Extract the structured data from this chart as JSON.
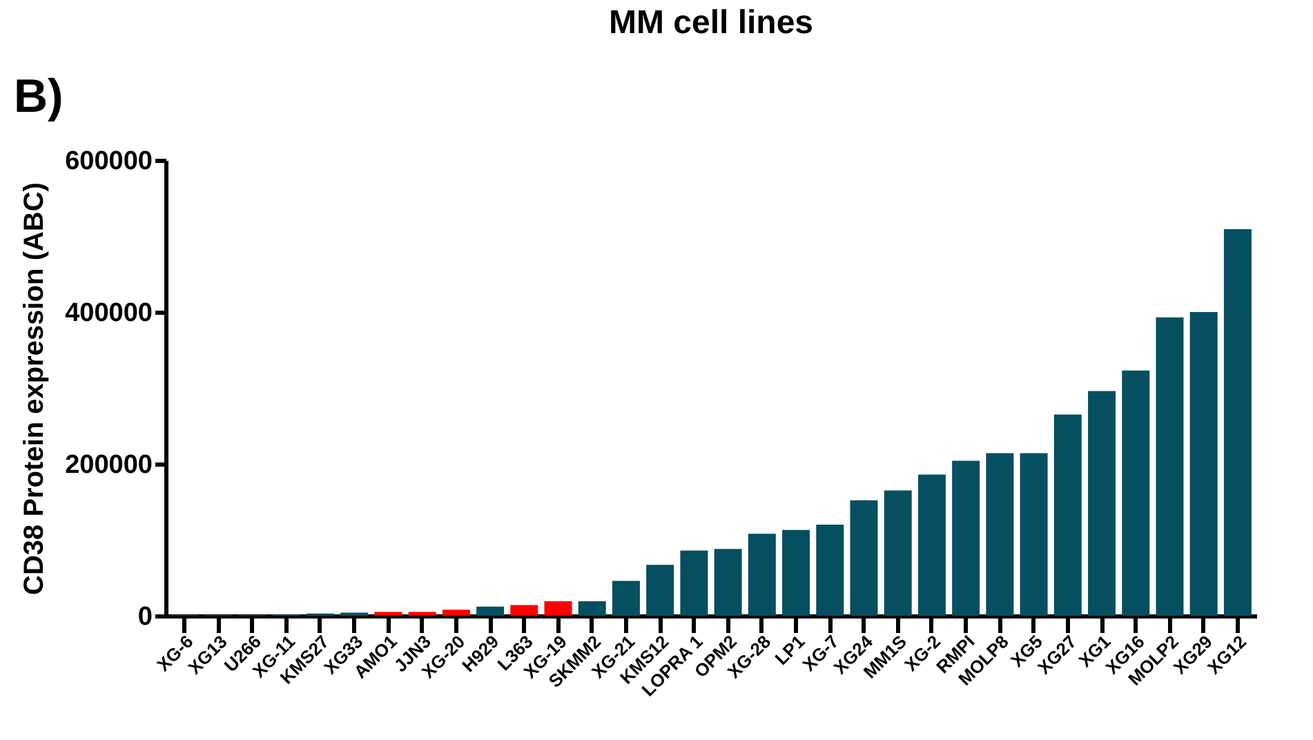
{
  "chart_data": {
    "type": "bar",
    "title": "MM cell lines",
    "ylabel": "CD38 Protein expression (ABC)",
    "annotations": [
      "B)"
    ],
    "categories": [
      "XG-6",
      "XG13",
      "U266",
      "XG-11",
      "KMS27",
      "XG33",
      "AMO1",
      "JJN3",
      "XG-20",
      "H929",
      "L363",
      "XG-19",
      "SKMM2",
      "XG-21",
      "KMS12",
      "LOPRA 1",
      "OPM2",
      "XG-28",
      "LP1",
      "XG-7",
      "XG24",
      "MM1S",
      "XG-2",
      "RMPI",
      "MOLP8",
      "XG5",
      "XG27",
      "XG1",
      "XG16",
      "MOLP2",
      "XG29",
      "XG12"
    ],
    "values": [
      1000,
      1000,
      1000,
      2000,
      3000,
      4000,
      5000,
      5000,
      8000,
      12000,
      14000,
      19000,
      19000,
      46000,
      67000,
      86000,
      88000,
      108000,
      113000,
      120000,
      152000,
      165000,
      186000,
      204000,
      214000,
      214000,
      265000,
      296000,
      323000,
      393000,
      400000,
      509000
    ],
    "colors": [
      "#054f60",
      "#054f60",
      "#054f60",
      "#054f60",
      "#054f60",
      "#054f60",
      "#ff0000",
      "#ff0000",
      "#ff0000",
      "#054f60",
      "#ff0000",
      "#ff0000",
      "#054f60",
      "#054f60",
      "#054f60",
      "#054f60",
      "#054f60",
      "#054f60",
      "#054f60",
      "#054f60",
      "#054f60",
      "#054f60",
      "#054f60",
      "#054f60",
      "#054f60",
      "#054f60",
      "#054f60",
      "#054f60",
      "#054f60",
      "#054f60",
      "#054f60",
      "#054f60"
    ],
    "ylim": [
      0,
      600000
    ],
    "yticks": [
      0,
      200000,
      400000,
      600000
    ],
    "grid": false
  }
}
